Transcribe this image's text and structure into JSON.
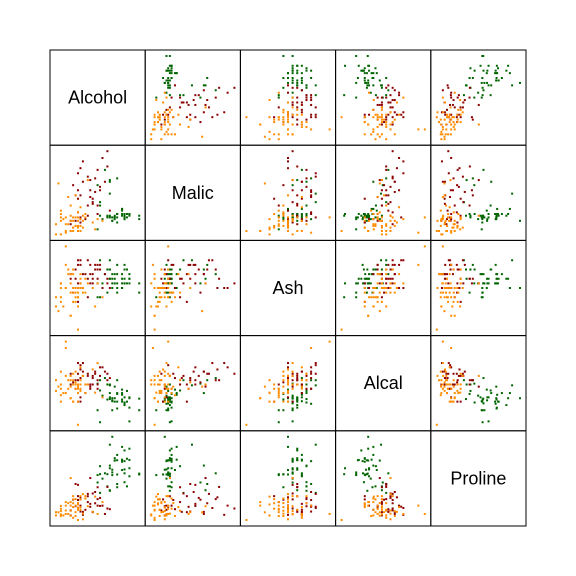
{
  "chart_data": {
    "type": "scatter",
    "variables": [
      "Alcohol",
      "Malic",
      "Ash",
      "Alcal",
      "Proline"
    ],
    "groups": [
      {
        "color": "#006400"
      },
      {
        "color": "#8B0000"
      },
      {
        "color": "#FF8C00"
      }
    ],
    "observations": {
      "g1": [
        [
          14.2,
          1.7,
          2.4,
          15.6,
          1065
        ],
        [
          13.2,
          1.8,
          2.1,
          11.2,
          1050
        ],
        [
          13.2,
          2.4,
          2.7,
          18.6,
          1185
        ],
        [
          14.4,
          1.9,
          2.5,
          16.8,
          1480
        ],
        [
          13.2,
          2.6,
          2.9,
          21.0,
          735
        ],
        [
          14.2,
          1.8,
          2.5,
          15.2,
          1450
        ],
        [
          14.4,
          1.9,
          2.5,
          14.6,
          1290
        ],
        [
          14.1,
          2.2,
          2.6,
          17.6,
          1295
        ],
        [
          14.8,
          1.6,
          2.2,
          14.0,
          1045
        ],
        [
          13.9,
          1.4,
          2.3,
          16.0,
          1045
        ],
        [
          14.1,
          2.2,
          2.3,
          18.0,
          1510
        ],
        [
          13.8,
          1.7,
          2.4,
          16.8,
          1280
        ],
        [
          13.8,
          1.8,
          2.5,
          16.0,
          1320
        ],
        [
          14.4,
          1.9,
          2.4,
          11.4,
          1150
        ],
        [
          13.6,
          3.1,
          2.9,
          19.8,
          1547
        ],
        [
          14.3,
          1.9,
          2.4,
          16.0,
          1310
        ],
        [
          13.8,
          1.6,
          2.6,
          19.5,
          1280
        ],
        [
          14.2,
          1.6,
          2.4,
          17.0,
          1130
        ],
        [
          13.7,
          1.5,
          2.3,
          16.8,
          1680
        ],
        [
          14.3,
          1.7,
          2.7,
          18.5,
          845
        ],
        [
          13.6,
          3.9,
          2.5,
          20.0,
          780
        ],
        [
          13.6,
          1.8,
          2.7,
          16.6,
          770
        ],
        [
          13.1,
          1.0,
          2.1,
          14.0,
          1035
        ],
        [
          14.4,
          1.8,
          2.6,
          17.0,
          1015
        ],
        [
          13.5,
          1.8,
          2.7,
          20.0,
          845
        ],
        [
          13.9,
          1.9,
          2.2,
          17.8,
          830
        ],
        [
          13.6,
          3.8,
          2.7,
          18.0,
          1195
        ],
        [
          14.1,
          1.8,
          2.5,
          16.5,
          1285
        ],
        [
          14.2,
          1.9,
          2.7,
          15.8,
          915
        ],
        [
          13.7,
          1.7,
          2.6,
          16.1,
          1035
        ],
        [
          13.9,
          1.7,
          2.4,
          14.4,
          1285
        ],
        [
          13.1,
          3.6,
          2.4,
          20.2,
          910
        ],
        [
          14.8,
          1.8,
          2.4,
          16.7,
          1060
        ],
        [
          14.1,
          2.1,
          2.3,
          18.8,
          1120
        ],
        [
          13.3,
          1.6,
          2.4,
          17.4,
          975
        ],
        [
          13.7,
          1.5,
          2.5,
          16.3,
          1125
        ],
        [
          13.9,
          4.0,
          2.8,
          21.0,
          885
        ],
        [
          13.4,
          4.5,
          2.6,
          21.5,
          1065
        ],
        [
          14.1,
          1.9,
          2.4,
          16.0,
          1260
        ],
        [
          13.7,
          1.7,
          2.4,
          14.0,
          1080
        ],
        [
          14.2,
          1.6,
          2.8,
          15.5,
          1270
        ],
        [
          13.9,
          1.9,
          2.6,
          18.0,
          1375
        ],
        [
          13.6,
          1.7,
          2.5,
          17.0,
          1150
        ],
        [
          13.5,
          1.7,
          2.2,
          16.5,
          1050
        ]
      ],
      "g2": [
        [
          12.4,
          1.6,
          2.3,
          17.0,
          520
        ],
        [
          12.3,
          2.8,
          2.0,
          16.0,
          680
        ],
        [
          12.6,
          1.6,
          2.6,
          18.0,
          450
        ],
        [
          13.1,
          4.5,
          2.7,
          21.0,
          630
        ],
        [
          12.4,
          3.0,
          2.8,
          21.5,
          420
        ],
        [
          12.0,
          1.5,
          2.6,
          20.0,
          355
        ],
        [
          12.7,
          1.8,
          2.5,
          22.0,
          678
        ],
        [
          12.4,
          1.7,
          2.9,
          24.5,
          502
        ],
        [
          12.2,
          1.5,
          2.7,
          19.0,
          510
        ],
        [
          13.0,
          3.2,
          2.8,
          23.0,
          750
        ],
        [
          12.7,
          4.1,
          2.9,
          22.5,
          718
        ],
        [
          12.3,
          3.3,
          2.4,
          21.0,
          870
        ],
        [
          12.9,
          2.8,
          2.6,
          20.0,
          410
        ],
        [
          13.5,
          5.6,
          2.4,
          22.5,
          472
        ],
        [
          12.8,
          3.9,
          2.4,
          19.5,
          985
        ],
        [
          12.2,
          3.0,
          2.5,
          21.0,
          885
        ],
        [
          13.2,
          3.3,
          2.8,
          24.0,
          515
        ],
        [
          12.5,
          5.0,
          2.3,
          25.0,
          365
        ],
        [
          13.4,
          3.8,
          2.6,
          23.0,
          380
        ],
        [
          12.8,
          2.9,
          2.8,
          19.0,
          500
        ],
        [
          13.1,
          2.4,
          2.5,
          20.0,
          830
        ],
        [
          12.3,
          4.3,
          2.9,
          25.0,
          480
        ],
        [
          12.9,
          2.5,
          2.5,
          21.5,
          415
        ],
        [
          12.4,
          1.4,
          2.4,
          16.0,
          625
        ],
        [
          13.2,
          3.5,
          2.7,
          22.0,
          650
        ],
        [
          13.6,
          2.1,
          2.3,
          21.5,
          460
        ],
        [
          12.0,
          1.3,
          2.5,
          22.5,
          440
        ],
        [
          12.7,
          2.4,
          2.1,
          20.0,
          580
        ],
        [
          13.3,
          5.2,
          2.3,
          24.0,
          520
        ],
        [
          12.4,
          4.6,
          2.3,
          23.5,
          660
        ],
        [
          12.8,
          3.3,
          2.6,
          20.0,
          550
        ],
        [
          12.3,
          2.0,
          2.8,
          22.5,
          615
        ],
        [
          13.1,
          1.9,
          2.8,
          19.0,
          520
        ],
        [
          13.5,
          4.7,
          2.5,
          21.0,
          835
        ],
        [
          12.5,
          3.8,
          2.6,
          23.0,
          415
        ],
        [
          12.1,
          3.6,
          2.2,
          20.5,
          620
        ],
        [
          12.9,
          2.6,
          2.4,
          22.0,
          725
        ],
        [
          13.0,
          4.0,
          2.7,
          22.5,
          560
        ]
      ],
      "g3": [
        [
          12.4,
          0.9,
          2.5,
          20.0,
          450
        ],
        [
          12.3,
          1.1,
          1.9,
          16.0,
          540
        ],
        [
          12.6,
          1.7,
          2.5,
          20.0,
          680
        ],
        [
          12.0,
          0.9,
          1.7,
          16.8,
          520
        ],
        [
          11.4,
          0.7,
          1.9,
          21.0,
          355
        ],
        [
          12.4,
          1.2,
          2.3,
          21.0,
          450
        ],
        [
          12.2,
          1.2,
          2.0,
          20.0,
          630
        ],
        [
          12.3,
          1.7,
          2.1,
          19.0,
          465
        ],
        [
          13.1,
          1.6,
          2.4,
          25.0,
          380
        ],
        [
          12.5,
          1.1,
          2.3,
          22.0,
          715
        ],
        [
          12.4,
          1.6,
          2.4,
          19.0,
          680
        ],
        [
          11.6,
          2.1,
          2.1,
          17.5,
          345
        ],
        [
          11.8,
          0.8,
          2.8,
          28.5,
          520
        ],
        [
          12.4,
          1.2,
          2.3,
          18.5,
          625
        ],
        [
          12.3,
          1.5,
          2.3,
          20.0,
          486
        ],
        [
          12.1,
          1.1,
          2.0,
          16.0,
          560
        ],
        [
          12.3,
          1.2,
          2.1,
          18.0,
          450
        ],
        [
          11.4,
          1.3,
          2.1,
          18.5,
          410
        ],
        [
          12.6,
          1.9,
          2.2,
          18.0,
          640
        ],
        [
          11.8,
          1.7,
          3.2,
          30.0,
          380
        ],
        [
          12.2,
          3.0,
          2.3,
          20.5,
          410
        ],
        [
          12.0,
          0.9,
          1.7,
          16.8,
          580
        ],
        [
          11.6,
          1.9,
          2.0,
          19.0,
          468
        ],
        [
          12.0,
          1.5,
          2.6,
          19.5,
          350
        ],
        [
          12.3,
          0.9,
          1.4,
          10.6,
          278
        ],
        [
          12.2,
          1.7,
          2.1,
          19.0,
          520
        ],
        [
          13.0,
          1.0,
          1.9,
          18.1,
          672
        ],
        [
          11.7,
          1.6,
          1.9,
          18.0,
          355
        ],
        [
          12.7,
          3.9,
          2.4,
          20.0,
          510
        ],
        [
          12.1,
          0.9,
          2.6,
          21.0,
          315
        ],
        [
          11.5,
          3.7,
          1.8,
          19.5,
          407
        ],
        [
          12.1,
          1.5,
          2.2,
          16.0,
          495
        ],
        [
          13.3,
          1.5,
          2.1,
          17.0,
          580
        ],
        [
          12.0,
          1.8,
          2.4,
          22.0,
          985
        ],
        [
          11.6,
          1.7,
          2.3,
          16.0,
          515
        ],
        [
          12.4,
          2.3,
          2.6,
          24.0,
          495
        ],
        [
          12.0,
          2.4,
          2.2,
          21.0,
          434
        ],
        [
          12.5,
          1.8,
          2.2,
          22.0,
          385
        ],
        [
          11.8,
          0.9,
          2.3,
          22.0,
          438
        ],
        [
          12.5,
          1.5,
          2.3,
          22.0,
          290
        ],
        [
          12.2,
          1.2,
          2.2,
          23.0,
          345
        ],
        [
          11.9,
          2.9,
          2.6,
          19.0,
          380
        ],
        [
          11.6,
          0.7,
          2.4,
          20.0,
          372
        ],
        [
          12.3,
          2.0,
          2.2,
          19.5,
          564
        ],
        [
          12.1,
          1.1,
          2.3,
          20.0,
          625
        ],
        [
          11.6,
          1.5,
          2.4,
          23.0,
          428
        ],
        [
          11.9,
          1.3,
          2.7,
          21.0,
          562
        ],
        [
          12.9,
          1.4,
          2.3,
          23.5,
          415
        ],
        [
          11.8,
          1.3,
          2.3,
          18.0,
          580
        ],
        [
          12.1,
          1.7,
          2.7,
          22.5,
          680
        ]
      ]
    }
  }
}
